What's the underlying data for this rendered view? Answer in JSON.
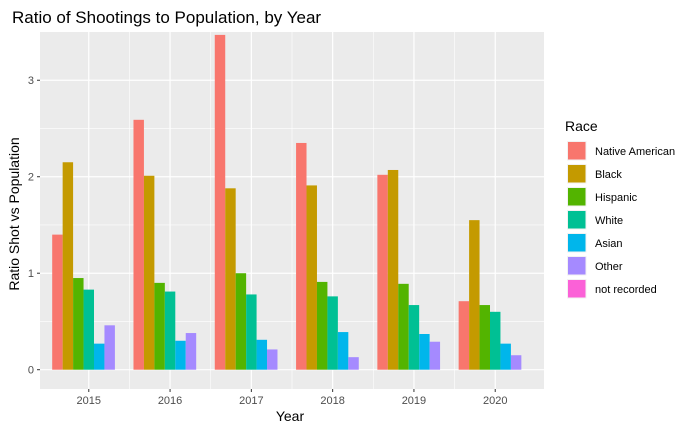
{
  "chart_data": {
    "type": "bar",
    "title": "Ratio of Shootings to Population, by Year",
    "xlabel": "Year",
    "ylabel": "Ratio Shot vs Population",
    "categories": [
      "2015",
      "2016",
      "2017",
      "2018",
      "2019",
      "2020"
    ],
    "ylim": [
      -0.2,
      3.5
    ],
    "yticks": [
      0,
      1,
      2,
      3
    ],
    "grid": true,
    "legend": {
      "title": "Race",
      "position": "right"
    },
    "series": [
      {
        "name": "Native American",
        "color": "#F8766D",
        "values": [
          1.4,
          2.59,
          3.47,
          2.35,
          2.02,
          0.71
        ]
      },
      {
        "name": "Black",
        "color": "#C49A00",
        "values": [
          2.15,
          2.01,
          1.88,
          1.91,
          2.07,
          1.55
        ]
      },
      {
        "name": "Hispanic",
        "color": "#53B400",
        "values": [
          0.95,
          0.9,
          1.0,
          0.91,
          0.89,
          0.67
        ]
      },
      {
        "name": "White",
        "color": "#00C094",
        "values": [
          0.83,
          0.81,
          0.78,
          0.76,
          0.67,
          0.6
        ]
      },
      {
        "name": "Asian",
        "color": "#00B6EB",
        "values": [
          0.27,
          0.3,
          0.31,
          0.39,
          0.37,
          0.27
        ]
      },
      {
        "name": "Other",
        "color": "#A58AFF",
        "values": [
          0.46,
          0.38,
          0.21,
          0.13,
          0.29,
          0.15
        ]
      },
      {
        "name": "not recorded",
        "color": "#FB61D7",
        "values": [
          0,
          0,
          0,
          0,
          0,
          0
        ]
      }
    ]
  }
}
